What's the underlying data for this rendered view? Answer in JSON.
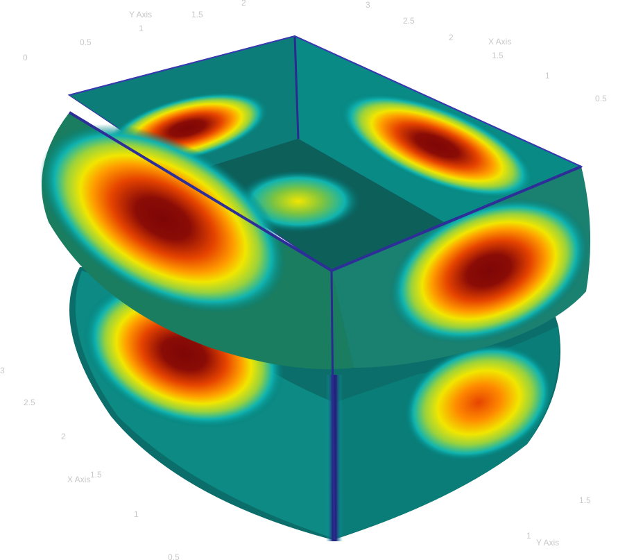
{
  "chart_data": {
    "type": "surface",
    "axes": {
      "top_left_y_axis": {
        "title": "Y Axis",
        "ticks": [
          "0",
          "0.5",
          "1",
          "1.5",
          "2"
        ]
      },
      "top_right_x_axis": {
        "title": "X Axis",
        "ticks": [
          "3",
          "2.5",
          "2",
          "1.5",
          "1",
          "0.5"
        ]
      },
      "left_x_axis": {
        "title": "X Axis",
        "ticks": [
          "3",
          "2.5",
          "2",
          "1.5",
          "1",
          "0.5"
        ]
      },
      "bottom_right_y_axis": {
        "title": "Y Axis",
        "ticks": [
          "1.5",
          "1"
        ]
      }
    },
    "colormap": [
      "#2b2484",
      "#007a78",
      "#0fb3b0",
      "#9ad23c",
      "#f1e600",
      "#ff9c00",
      "#e64400",
      "#7d0606"
    ]
  }
}
